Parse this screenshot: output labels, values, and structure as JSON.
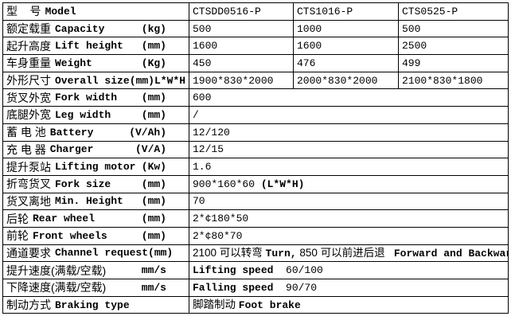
{
  "table": {
    "border_color": "#000000",
    "background_color": "#ffffff",
    "text_color": "#000000",
    "rows": [
      {
        "id": "model",
        "zh": "型    号",
        "en": "Model",
        "unit": "",
        "cells": [
          [
            {
              "t": "CTSDD0516-P",
              "b": false
            }
          ],
          [
            {
              "t": "CTS1016-P",
              "b": false
            }
          ],
          [
            {
              "t": "CTS0525-P",
              "b": false
            }
          ]
        ]
      },
      {
        "id": "capacity",
        "zh": "额定载重",
        "en": "Capacity",
        "unit": "(kg)",
        "cells": [
          [
            {
              "t": "500",
              "b": false
            }
          ],
          [
            {
              "t": "1000",
              "b": false
            }
          ],
          [
            {
              "t": "500",
              "b": false
            }
          ]
        ]
      },
      {
        "id": "lift-height",
        "zh": "起升高度",
        "en": "Lift height",
        "unit": "(mm)",
        "cells": [
          [
            {
              "t": "1600",
              "b": false
            }
          ],
          [
            {
              "t": "1600",
              "b": false
            }
          ],
          [
            {
              "t": "2500",
              "b": false
            }
          ]
        ]
      },
      {
        "id": "weight",
        "zh": "车身重量",
        "en": "Weight",
        "unit": "(Kg)",
        "cells": [
          [
            {
              "t": "450",
              "b": false
            }
          ],
          [
            {
              "t": "476",
              "b": false
            }
          ],
          [
            {
              "t": "499",
              "b": false
            }
          ]
        ]
      },
      {
        "id": "overall-size",
        "zh": "外形尺寸",
        "en": "Overall size",
        "unit": "(mm)L*W*H",
        "unit_flush": true,
        "cells": [
          [
            {
              "t": "1900*830*2000",
              "b": false
            }
          ],
          [
            {
              "t": "2000*830*2000",
              "b": false
            }
          ],
          [
            {
              "t": "2100*830*1800",
              "b": false
            }
          ]
        ]
      },
      {
        "id": "fork-width",
        "zh": "货叉外宽",
        "en": "Fork width",
        "unit": "(mm)",
        "cells": [
          [
            {
              "t": "600",
              "b": false
            }
          ]
        ]
      },
      {
        "id": "leg-width",
        "zh": "底腿外宽",
        "en": "Leg width",
        "unit": "(mm)",
        "cells": [
          [
            {
              "t": "/",
              "b": false
            }
          ]
        ]
      },
      {
        "id": "battery",
        "zh": "蓄 电 池",
        "en": "Battery",
        "unit": "(V/Ah)",
        "cells": [
          [
            {
              "t": "12/120",
              "b": false
            }
          ]
        ]
      },
      {
        "id": "charger",
        "zh": "充 电 器",
        "en": "Charger",
        "unit": "(V/A)",
        "cells": [
          [
            {
              "t": "12/15",
              "b": false
            }
          ]
        ]
      },
      {
        "id": "lifting-motor",
        "zh": "提升泵站",
        "en": "Lifting motor",
        "unit": "(Kw)",
        "cells": [
          [
            {
              "t": "1.6",
              "b": false
            }
          ]
        ]
      },
      {
        "id": "fork-size",
        "zh": "折弯货叉",
        "en": "Fork size",
        "unit": "(mm)",
        "cells": [
          [
            {
              "t": "900*160*60 ",
              "b": false
            },
            {
              "t": "(L*W*H)",
              "b": true
            }
          ]
        ]
      },
      {
        "id": "min-height",
        "zh": "货叉离地",
        "en": "Min. Height",
        "unit": "(mm)",
        "cells": [
          [
            {
              "t": "70",
              "b": false
            }
          ]
        ]
      },
      {
        "id": "rear-wheel",
        "zh": "后轮",
        "en": "Rear wheel",
        "unit": "(mm)",
        "cells": [
          [
            {
              "t": "2*¢180*50",
              "b": false
            }
          ]
        ]
      },
      {
        "id": "front-wheels",
        "zh": "前轮",
        "en": "Front wheels",
        "unit": "(mm)",
        "cells": [
          [
            {
              "t": "2*¢80*70",
              "b": false
            }
          ]
        ]
      },
      {
        "id": "channel-request",
        "zh": "通道要求",
        "en": "Channel request",
        "unit": "(mm)",
        "cells": [
          [
            {
              "t": "2100 可以转弯 ",
              "b": false,
              "cjk": true
            },
            {
              "t": "Turn,",
              "b": true
            },
            {
              "t": " 850 可以前进后退   ",
              "b": false,
              "cjk": true
            },
            {
              "t": "Forward and Backward",
              "b": true
            }
          ]
        ]
      },
      {
        "id": "lifting-speed",
        "zh": "提升速度(满载/空载)",
        "en": "",
        "unit": "mm/s",
        "cells": [
          [
            {
              "t": "Lifting speed  ",
              "b": true
            },
            {
              "t": "60/100",
              "b": false
            }
          ]
        ]
      },
      {
        "id": "falling-speed",
        "zh": "下降速度(满载/空载)",
        "en": "",
        "unit": "mm/s",
        "cells": [
          [
            {
              "t": "Falling speed  ",
              "b": true
            },
            {
              "t": "90/70",
              "b": false
            }
          ]
        ]
      },
      {
        "id": "braking-type",
        "zh": "制动方式",
        "en": "Braking type",
        "unit": "",
        "cells": [
          [
            {
              "t": "脚踏制动 ",
              "b": false,
              "cjk": true
            },
            {
              "t": "Foot brake",
              "b": true
            }
          ]
        ]
      }
    ]
  }
}
